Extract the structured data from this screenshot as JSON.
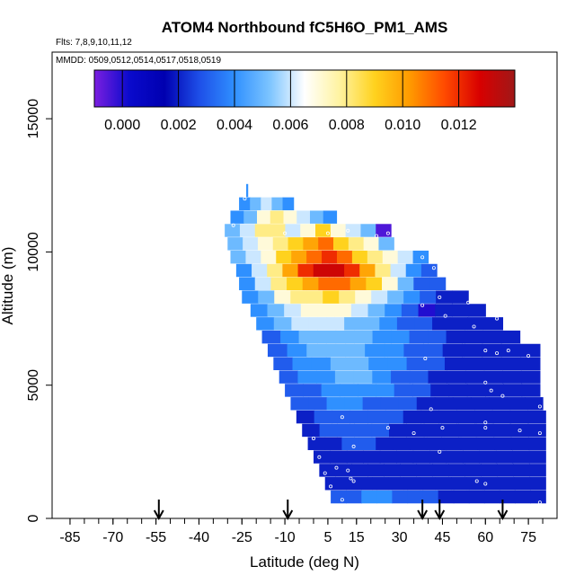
{
  "chart_data": {
    "type": "heatmap",
    "title": "ATOM4 Northbound fC5H6O_PM1_AMS",
    "subtitle_flights": "Flts: 7,8,9,10,11,12",
    "subtitle_dates": "MMDD: 0509,0512,0514,0517,0518,0519",
    "xlabel": "Latitude (deg N)",
    "ylabel": "Altitude (m)",
    "xlim": [
      -90,
      85
    ],
    "ylim": [
      0,
      17500
    ],
    "x_tick_values": [
      -85,
      -70,
      -55,
      -40,
      -25,
      -10,
      5,
      15,
      30,
      45,
      60,
      75
    ],
    "x_tick_labels": [
      "-85",
      "-70",
      "-55",
      "-40",
      "-25",
      "-10",
      "5",
      "15",
      "30",
      "45",
      "60",
      "75"
    ],
    "y_tick_values": [
      0,
      5000,
      10000,
      15000
    ],
    "y_tick_labels": [
      "0",
      "5000",
      "10000",
      "15000"
    ],
    "colorbar": {
      "range": [
        -0.001,
        0.014
      ],
      "tick_values": [
        0.0,
        0.002,
        0.004,
        0.006,
        0.008,
        0.01,
        0.012
      ],
      "tick_labels": [
        "0.000",
        "0.002",
        "0.004",
        "0.006",
        "0.008",
        "0.010",
        "0.012"
      ],
      "colors": [
        "#7b1fe0",
        "#0a0acc",
        "#0000b0",
        "#1e4fe8",
        "#2f90ff",
        "#7cc4ff",
        "#ffffff",
        "#fff3a0",
        "#ffd21e",
        "#ff9a00",
        "#ff4a00",
        "#d80000",
        "#a01818"
      ]
    },
    "arrow_latitudes": [
      -54,
      -9,
      38,
      44,
      66
    ],
    "rows": [
      {
        "alt": 12300,
        "x0": -23.5,
        "x1": -23,
        "v": [
          0.004
        ]
      },
      {
        "alt": 11800,
        "x0": -26,
        "x1": -7,
        "v": [
          0.004,
          0.005,
          0.006,
          0.005,
          0.004
        ]
      },
      {
        "alt": 11300,
        "x0": -29,
        "x1": 8,
        "v": [
          0.004,
          0.005,
          0.007,
          0.008,
          0.007,
          0.006,
          0.005,
          0.004
        ]
      },
      {
        "alt": 10800,
        "x0": -31,
        "x1": 27,
        "v": [
          0.005,
          0.006,
          0.008,
          0.008,
          0.006,
          0.007,
          0.009,
          0.007,
          0.006,
          0.005,
          -0.0005
        ]
      },
      {
        "alt": 10300,
        "x0": -30,
        "x1": 28,
        "v": [
          0.005,
          0.006,
          0.007,
          0.008,
          0.009,
          0.01,
          0.011,
          0.009,
          0.008,
          0.007,
          0.005
        ]
      },
      {
        "alt": 9800,
        "x0": -29,
        "x1": 40,
        "v": [
          0.005,
          0.006,
          0.007,
          0.009,
          0.01,
          0.011,
          0.012,
          0.011,
          0.009,
          0.008,
          0.007,
          0.006,
          0.004
        ]
      },
      {
        "alt": 9300,
        "x0": -27,
        "x1": 43,
        "v": [
          0.004,
          0.006,
          0.008,
          0.01,
          0.012,
          0.013,
          0.013,
          0.012,
          0.01,
          0.008,
          0.006,
          0.004,
          0.003
        ]
      },
      {
        "alt": 8800,
        "x0": -26,
        "x1": 46,
        "v": [
          0.004,
          0.006,
          0.008,
          0.009,
          0.01,
          0.011,
          0.011,
          0.01,
          0.009,
          0.007,
          0.005,
          0.003,
          0.003
        ]
      },
      {
        "alt": 8300,
        "x0": -25,
        "x1": 54,
        "v": [
          0.004,
          0.005,
          0.007,
          0.008,
          0.008,
          0.009,
          0.008,
          0.007,
          0.006,
          0.005,
          0.004,
          0.003,
          0.002,
          0.002
        ]
      },
      {
        "alt": 7800,
        "x0": -22,
        "x1": 60,
        "v": [
          0.004,
          0.005,
          0.006,
          0.007,
          0.007,
          0.007,
          0.006,
          0.005,
          0.004,
          0.003,
          0.0,
          0.002,
          0.002,
          0.002
        ]
      },
      {
        "alt": 7300,
        "x0": -20,
        "x1": 66,
        "v": [
          0.004,
          0.005,
          0.006,
          0.006,
          0.006,
          0.005,
          0.005,
          0.004,
          0.003,
          0.003,
          0.002,
          0.002,
          0.002,
          0.002
        ]
      },
      {
        "alt": 6800,
        "x0": -18,
        "x1": 72,
        "v": [
          0.003,
          0.004,
          0.005,
          0.005,
          0.005,
          0.005,
          0.004,
          0.004,
          0.003,
          0.003,
          0.002,
          0.002,
          0.002,
          0.002
        ]
      },
      {
        "alt": 6300,
        "x0": -16,
        "x1": 79,
        "v": [
          0.003,
          0.004,
          0.005,
          0.005,
          0.005,
          0.004,
          0.004,
          0.003,
          0.003,
          0.002,
          0.002,
          0.002,
          0.002,
          0.002
        ]
      },
      {
        "alt": 5800,
        "x0": -14,
        "x1": 79,
        "v": [
          0.003,
          0.004,
          0.004,
          0.005,
          0.005,
          0.004,
          0.004,
          0.003,
          0.003,
          0.002,
          0.002,
          0.002,
          0.002,
          0.002
        ]
      },
      {
        "alt": 5300,
        "x0": -12,
        "x1": 79,
        "v": [
          0.003,
          0.004,
          0.004,
          0.005,
          0.005,
          0.004,
          0.003,
          0.003,
          0.002,
          0.002,
          0.002,
          0.002,
          0.002,
          0.002
        ]
      },
      {
        "alt": 4800,
        "x0": -10,
        "x1": 79,
        "v": [
          0.003,
          0.003,
          0.004,
          0.004,
          0.004,
          0.004,
          0.003,
          0.003,
          0.002,
          0.002,
          0.002,
          0.002,
          0.002,
          0.002
        ]
      },
      {
        "alt": 4300,
        "x0": -8,
        "x1": 80,
        "v": [
          0.003,
          0.003,
          0.004,
          0.004,
          0.003,
          0.003,
          0.003,
          0.002,
          0.002,
          0.002,
          0.002,
          0.002,
          0.002,
          0.002
        ]
      },
      {
        "alt": 3800,
        "x0": -6,
        "x1": 81,
        "v": [
          0.002,
          0.003,
          0.003,
          0.003,
          0.003,
          0.003,
          0.002,
          0.002,
          0.002,
          0.002,
          0.002,
          0.002,
          0.002,
          0.002
        ]
      },
      {
        "alt": 3300,
        "x0": -4,
        "x1": 81,
        "v": [
          0.002,
          0.003,
          0.003,
          0.003,
          0.003,
          0.002,
          0.002,
          0.002,
          0.002,
          0.002,
          0.002,
          0.002,
          0.002,
          0.002
        ]
      },
      {
        "alt": 2800,
        "x0": -2,
        "x1": 81,
        "v": [
          0.002,
          0.002,
          0.003,
          0.003,
          0.002,
          0.002,
          0.002,
          0.002,
          0.002,
          0.002,
          0.002,
          0.002,
          0.002,
          0.002
        ]
      },
      {
        "alt": 2300,
        "x0": 0,
        "x1": 81,
        "v": [
          0.002,
          0.002,
          0.002,
          0.002,
          0.002,
          0.002,
          0.002,
          0.002,
          0.002,
          0.002,
          0.002,
          0.002,
          0.002,
          0.002
        ]
      },
      {
        "alt": 1800,
        "x0": 2,
        "x1": 81,
        "v": [
          0.002,
          0.002,
          0.002,
          0.002,
          0.002,
          0.002,
          0.002,
          0.002,
          0.002,
          0.002,
          0.002,
          0.002,
          0.002,
          0.002
        ]
      },
      {
        "alt": 1300,
        "x0": 4,
        "x1": 81,
        "v": [
          0.002,
          0.002,
          0.002,
          0.002,
          0.002,
          0.002,
          0.002,
          0.002,
          0.002,
          0.002,
          0.002,
          0.002,
          0.002,
          0.002
        ]
      },
      {
        "alt": 800,
        "x0": 6,
        "x1": 81,
        "v": [
          0.003,
          0.003,
          0.004,
          0.004,
          0.003,
          0.003,
          0.003,
          0.002,
          0.002,
          0.002,
          0.002,
          0.002,
          0.002,
          0.002
        ]
      }
    ],
    "sample_points": [
      [
        -24,
        12000
      ],
      [
        -28,
        11000
      ],
      [
        -10,
        10700
      ],
      [
        5,
        10700
      ],
      [
        12,
        10800
      ],
      [
        22,
        10600
      ],
      [
        26,
        10700
      ],
      [
        38,
        9800
      ],
      [
        42,
        9400
      ],
      [
        44,
        8300
      ],
      [
        54,
        8100
      ],
      [
        60,
        8300
      ],
      [
        64,
        7500
      ],
      [
        38,
        8000
      ],
      [
        46,
        7600
      ],
      [
        56,
        7200
      ],
      [
        60,
        6300
      ],
      [
        64,
        6200
      ],
      [
        68,
        6300
      ],
      [
        75,
        6100
      ],
      [
        39,
        6000
      ],
      [
        60,
        5100
      ],
      [
        62,
        4800
      ],
      [
        66,
        4600
      ],
      [
        79,
        4200
      ],
      [
        41,
        4100
      ],
      [
        60,
        3600
      ],
      [
        79,
        3200
      ],
      [
        10,
        3800
      ],
      [
        26,
        3400
      ],
      [
        35,
        3200
      ],
      [
        45,
        3400
      ],
      [
        60,
        3400
      ],
      [
        72,
        3300
      ],
      [
        0,
        3000
      ],
      [
        14,
        2700
      ],
      [
        44,
        2500
      ],
      [
        2,
        2300
      ],
      [
        12,
        1800
      ],
      [
        4,
        1700
      ],
      [
        13,
        1500
      ],
      [
        8,
        1900
      ],
      [
        6,
        1200
      ],
      [
        14,
        1400
      ],
      [
        57,
        1400
      ],
      [
        60,
        1300
      ],
      [
        10,
        700
      ],
      [
        79,
        600
      ]
    ]
  }
}
